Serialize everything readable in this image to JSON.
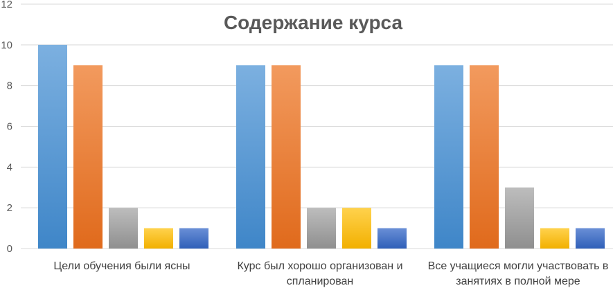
{
  "chart_data": {
    "type": "bar",
    "title": "Содержание курса",
    "xlabel": "",
    "ylabel": "",
    "ylim": [
      0,
      12
    ],
    "yticks": [
      "0",
      "2",
      "4",
      "6",
      "8",
      "10",
      "12"
    ],
    "grid": true,
    "categories": [
      [
        "Цели обучения были ясны"
      ],
      [
        "Курс был хорошо организован и",
        "спланирован"
      ],
      [
        "Все учащиеся могли участвовать в",
        "занятиях в полной мере"
      ]
    ],
    "series": [
      {
        "color": "#5b9bd5",
        "values": [
          10,
          9,
          9
        ]
      },
      {
        "color": "#ed7d31",
        "values": [
          9,
          9,
          9
        ]
      },
      {
        "color": "#a5a5a5",
        "values": [
          2,
          2,
          3
        ]
      },
      {
        "color": "#ffc000",
        "values": [
          1,
          2,
          1
        ]
      },
      {
        "color": "#4472c4",
        "values": [
          1,
          1,
          1
        ]
      }
    ]
  }
}
